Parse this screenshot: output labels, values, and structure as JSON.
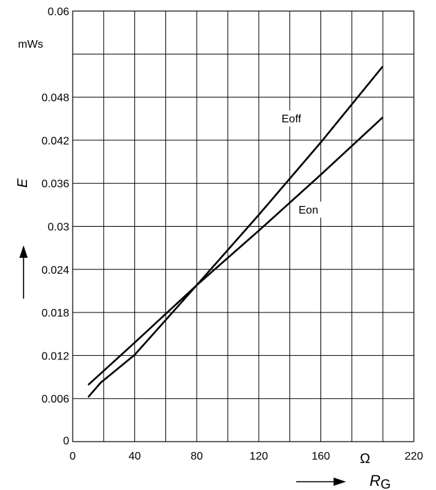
{
  "chart_data": {
    "type": "line",
    "title": "",
    "xlabel": "R",
    "xlabel_sub": "G",
    "x_unit": "Ω",
    "ylabel": "E",
    "y_unit": "mWs",
    "xlim": [
      0,
      220
    ],
    "ylim": [
      0,
      0.06
    ],
    "grid": true,
    "x_ticks": [
      {
        "value": 0,
        "label": "0"
      },
      {
        "value": 40,
        "label": "40"
      },
      {
        "value": 80,
        "label": "80"
      },
      {
        "value": 120,
        "label": "120"
      },
      {
        "value": 160,
        "label": "160"
      },
      {
        "value": 220,
        "label": "220"
      }
    ],
    "x_grid": [
      0,
      20,
      40,
      60,
      80,
      100,
      120,
      140,
      160,
      180,
      200,
      220
    ],
    "y_ticks": [
      {
        "value": 0,
        "label": "0"
      },
      {
        "value": 0.006,
        "label": "0.006"
      },
      {
        "value": 0.012,
        "label": "0.012"
      },
      {
        "value": 0.018,
        "label": "0.018"
      },
      {
        "value": 0.024,
        "label": "0.024"
      },
      {
        "value": 0.03,
        "label": "0.03"
      },
      {
        "value": 0.036,
        "label": "0.036"
      },
      {
        "value": 0.042,
        "label": "0.042"
      },
      {
        "value": 0.048,
        "label": "0.048"
      },
      {
        "value": 0.06,
        "label": "0.06"
      }
    ],
    "y_grid": [
      0,
      0.006,
      0.012,
      0.018,
      0.024,
      0.03,
      0.036,
      0.042,
      0.048,
      0.054,
      0.06
    ],
    "series": [
      {
        "name": "Eoff",
        "x": [
          10,
          18,
          40,
          80,
          120,
          160,
          200
        ],
        "y": [
          0.0062,
          0.0082,
          0.0121,
          0.0218,
          0.0316,
          0.0417,
          0.0523
        ]
      },
      {
        "name": "Eon",
        "x": [
          10,
          40,
          80,
          120,
          160,
          200
        ],
        "y": [
          0.0079,
          0.0138,
          0.0218,
          0.0294,
          0.0372,
          0.0452
        ]
      }
    ],
    "series_label_at": [
      {
        "x": 141,
        "y": 0.0445
      },
      {
        "x": 152,
        "y": 0.0318
      }
    ]
  }
}
